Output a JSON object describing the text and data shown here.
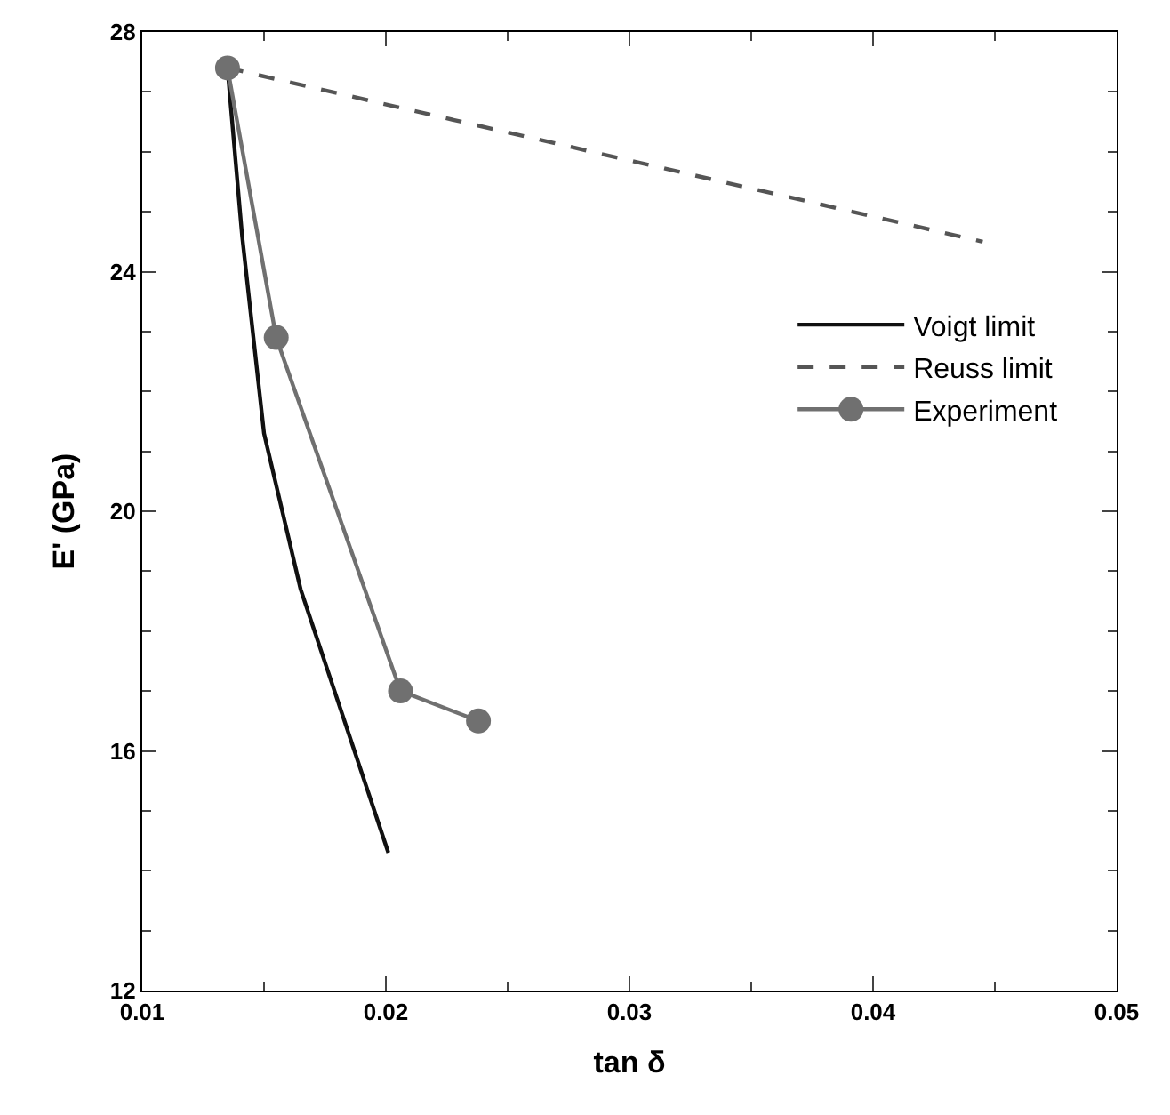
{
  "chart_data": {
    "type": "line",
    "xlabel": "tan δ",
    "ylabel": "E' (GPa)",
    "xlim": [
      0.01,
      0.05
    ],
    "xticks": [
      0.01,
      0.02,
      0.03,
      0.04,
      0.05
    ],
    "ylim": [
      12,
      28
    ],
    "yticks": [
      12,
      16,
      20,
      24,
      28
    ],
    "legend": "right",
    "series": [
      {
        "name": "Voigt limit",
        "color": "#111111",
        "line_style": "solid",
        "marker": "none",
        "x": [
          0.0135,
          0.0141,
          0.015,
          0.0165,
          0.0201
        ],
        "values": [
          27.4,
          24.6,
          21.3,
          18.7,
          14.3
        ]
      },
      {
        "name": "Reuss limit",
        "color": "#555555",
        "line_style": "dashed",
        "marker": "none",
        "x": [
          0.0135,
          0.0445
        ],
        "values": [
          27.4,
          24.5
        ]
      },
      {
        "name": "Experiment",
        "color": "#707070",
        "line_style": "solid",
        "marker": "circle",
        "x": [
          0.0135,
          0.0155,
          0.0206,
          0.0238
        ],
        "values": [
          27.4,
          22.9,
          17.0,
          16.5
        ]
      }
    ]
  }
}
